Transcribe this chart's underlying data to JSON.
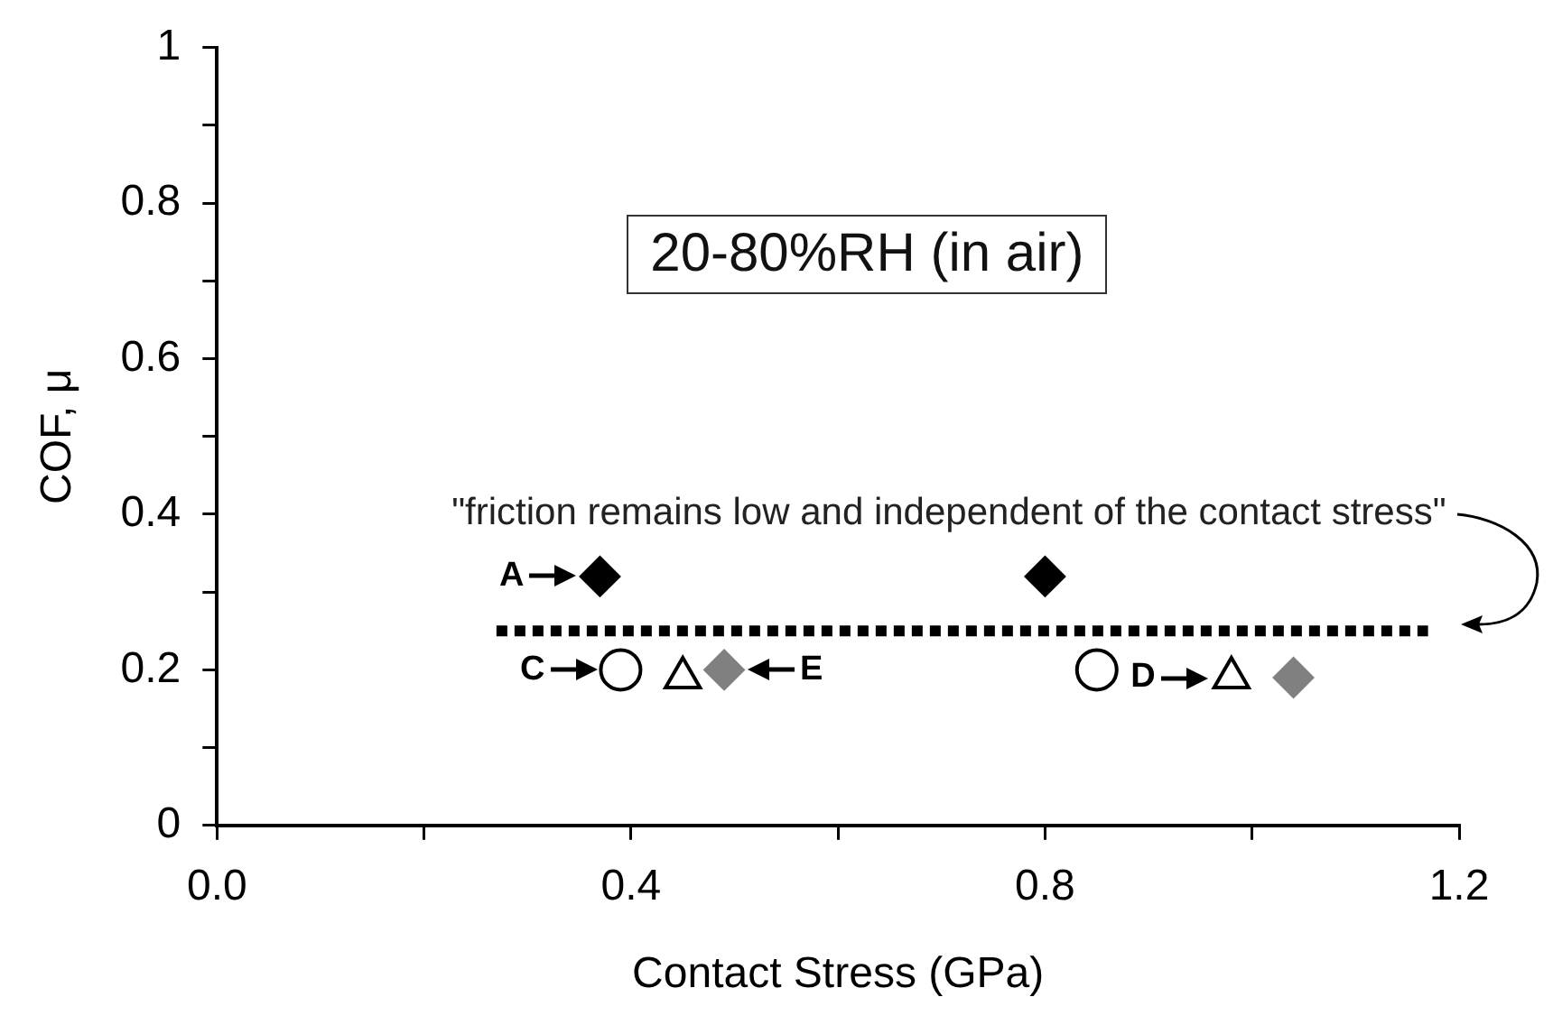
{
  "chart_data": {
    "type": "scatter",
    "xlabel": "Contact Stress (GPa)",
    "ylabel": "COF, μ",
    "xlim": [
      0,
      1.2
    ],
    "ylim": [
      0,
      1
    ],
    "xticks": [
      {
        "value": 0,
        "label": "0.0"
      },
      {
        "value": 0.2,
        "label": null
      },
      {
        "value": 0.4,
        "label": "0.4"
      },
      {
        "value": 0.6,
        "label": null
      },
      {
        "value": 0.8,
        "label": "0.8"
      },
      {
        "value": 1.0,
        "label": null
      },
      {
        "value": 1.2,
        "label": "1.2"
      }
    ],
    "yticks": [
      0,
      {
        "value": 0.1,
        "label": null
      },
      0.2,
      {
        "value": 0.3,
        "label": null
      },
      0.4,
      {
        "value": 0.5,
        "label": null
      },
      0.6,
      {
        "value": 0.7,
        "label": null
      },
      0.8,
      {
        "value": 0.9,
        "label": null
      },
      1
    ],
    "grid": false,
    "legend": false,
    "series": [
      {
        "type": "scatter",
        "marker": "diamond",
        "color": "#000000",
        "x": [
          0.37,
          0.8
        ],
        "values": [
          0.32,
          0.32
        ]
      },
      {
        "type": "scatter",
        "marker": "circle",
        "color": "#000000",
        "x": [
          0.39,
          0.85
        ],
        "values": [
          0.2,
          0.2
        ]
      },
      {
        "type": "scatter",
        "marker": "triangle",
        "color": "#000000",
        "x": [
          0.45,
          0.98
        ],
        "values": [
          0.19,
          0.19
        ]
      },
      {
        "type": "scatter",
        "marker": "diamond",
        "color": "#808080",
        "x": [
          0.49,
          1.04
        ],
        "values": [
          0.2,
          0.19
        ]
      },
      {
        "type": "line",
        "line_style": "dotted",
        "marker": "none",
        "color": "#000000",
        "x": [
          0.27,
          1.17
        ],
        "values": [
          0.25,
          0.25
        ]
      }
    ],
    "annotations": [
      "20-80%RH (in air)",
      {
        "text": "\"friction remains low and independent of the contact stress\"",
        "x": 1.17,
        "y": 0.25
      },
      {
        "text": "A",
        "x": 0.37,
        "y": 0.32
      },
      {
        "text": "C",
        "x": 0.39,
        "y": 0.2
      },
      {
        "text": "E",
        "x": 0.49,
        "y": 0.2
      },
      {
        "text": "D",
        "x": 0.98,
        "y": 0.19
      }
    ]
  }
}
